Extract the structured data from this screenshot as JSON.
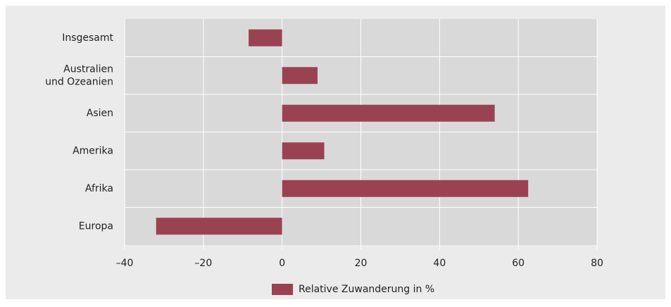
{
  "chart_data": {
    "type": "hbar",
    "categories": [
      "Insgesamt",
      "Australien\nund Ozeanien",
      "Asien",
      "Amerika",
      "Afrika",
      "Europa"
    ],
    "series": [
      {
        "name": "Relative Zuwanderung in %",
        "color": "#9b4252",
        "values": [
          -8.5,
          9,
          54,
          10.7,
          62.5,
          -32
        ]
      }
    ],
    "xlim": [
      -40,
      80
    ],
    "xticks": [
      {
        "value": -40,
        "label": "–40"
      },
      {
        "value": -20,
        "label": "–20"
      },
      0,
      20,
      40,
      60,
      80
    ],
    "grid": true,
    "legend": "bottom"
  }
}
